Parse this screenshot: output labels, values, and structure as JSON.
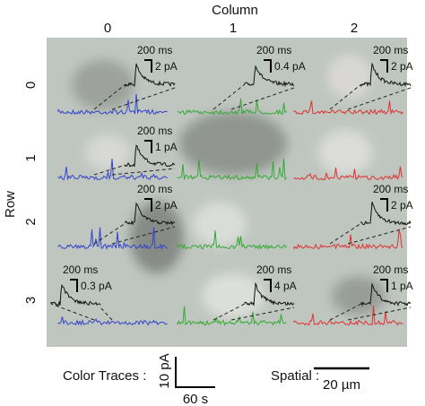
{
  "column_label": "Column",
  "column_headers": [
    "0",
    "1",
    "2"
  ],
  "row_label": "Row",
  "rows": [
    {
      "label": "0",
      "cells": [
        {
          "time_scale": "200 ms",
          "amplitude_scale": "2 pA"
        },
        {
          "time_scale": "200 ms",
          "amplitude_scale": "0.4 pA"
        },
        {
          "time_scale": "200 ms",
          "amplitude_scale": "2 pA"
        }
      ]
    },
    {
      "label": "1",
      "cells": [
        {
          "time_scale": "200 ms",
          "amplitude_scale": "1 pA"
        },
        null,
        null
      ]
    },
    {
      "label": "2",
      "cells": [
        {
          "time_scale": "200 ms",
          "amplitude_scale": "2 pA"
        },
        null,
        {
          "time_scale": "200 ms",
          "amplitude_scale": "2 pA"
        }
      ]
    },
    {
      "label": "3",
      "cells": [
        {
          "time_scale": "200 ms",
          "amplitude_scale": "0.3 pA"
        },
        {
          "time_scale": "200 ms",
          "amplitude_scale": "4 pA"
        },
        {
          "time_scale": "200 ms",
          "amplitude_scale": "1 pA"
        }
      ]
    }
  ],
  "scale_bars": {
    "traces_label": "Color Traces :",
    "amplitude": "10 pA",
    "time": "60 s",
    "spatial_label": "Spatial :",
    "spatial": "20 µm"
  }
}
